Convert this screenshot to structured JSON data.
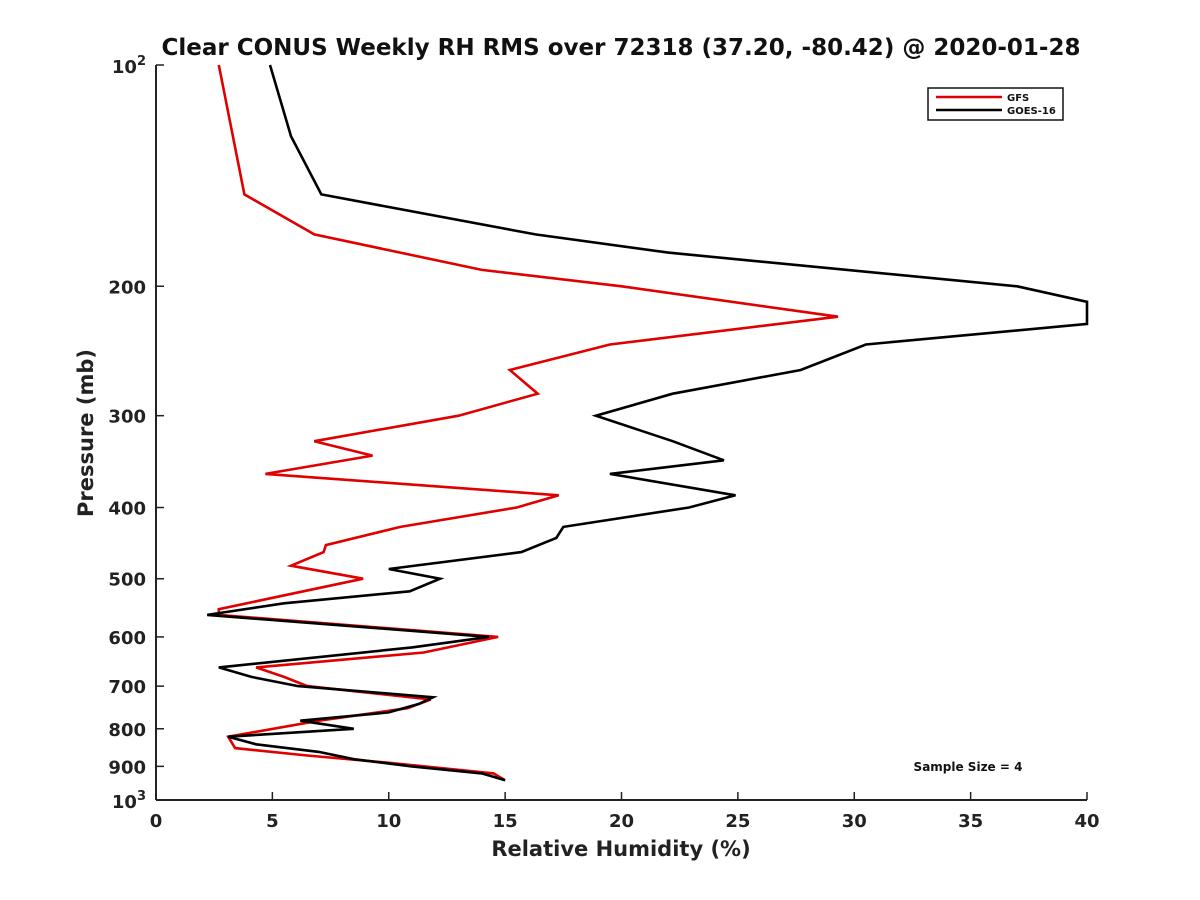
{
  "chart_data": {
    "type": "line",
    "title": "Clear CONUS Weekly RH RMS over 72318 (37.20, -80.42) @ 2020-01-28",
    "xlabel": "Relative Humidity (%)",
    "ylabel": "Pressure (mb)",
    "xlim": [
      0,
      40
    ],
    "ylim": [
      100,
      1000
    ],
    "y_scale": "log",
    "y_reversed": true,
    "x_ticks": [
      0,
      5,
      10,
      15,
      20,
      25,
      30,
      35,
      40
    ],
    "x_tick_labels": [
      "0",
      "5",
      "10",
      "15",
      "20",
      "25",
      "30",
      "35",
      "40"
    ],
    "y_ticks": [
      200,
      300,
      400,
      500,
      600,
      700,
      800,
      900
    ],
    "y_tick_labels": [
      "200",
      "300",
      "400",
      "500",
      "600",
      "700",
      "800",
      "900"
    ],
    "y_decade_ticks": [
      {
        "value": 100,
        "base": "10",
        "exp": "2"
      },
      {
        "value": 1000,
        "base": "10",
        "exp": "3"
      }
    ],
    "grid": false,
    "legend_position": "top-right",
    "annotation": "Sample Size = 4",
    "series": [
      {
        "name": "GFS",
        "color": "#e00000",
        "points": [
          [
            2.7,
            100
          ],
          [
            3.8,
            150
          ],
          [
            6.8,
            170
          ],
          [
            14.0,
            190
          ],
          [
            20.0,
            200
          ],
          [
            29.3,
            220
          ],
          [
            19.5,
            240
          ],
          [
            15.2,
            260
          ],
          [
            16.4,
            280
          ],
          [
            13.0,
            300
          ],
          [
            6.8,
            325
          ],
          [
            9.3,
            340
          ],
          [
            4.7,
            360
          ],
          [
            17.3,
            385
          ],
          [
            15.5,
            400
          ],
          [
            10.5,
            425
          ],
          [
            7.3,
            450
          ],
          [
            7.2,
            460
          ],
          [
            5.8,
            480
          ],
          [
            8.9,
            500
          ],
          [
            2.7,
            550
          ],
          [
            2.7,
            560
          ],
          [
            14.7,
            600
          ],
          [
            11.5,
            630
          ],
          [
            4.3,
            660
          ],
          [
            5.5,
            680
          ],
          [
            6.5,
            700
          ],
          [
            11.8,
            730
          ],
          [
            10.8,
            750
          ],
          [
            7.0,
            780
          ],
          [
            3.1,
            820
          ],
          [
            3.4,
            850
          ],
          [
            6.5,
            870
          ],
          [
            10.0,
            890
          ],
          [
            14.5,
            920
          ],
          [
            15.0,
            940
          ]
        ]
      },
      {
        "name": "GOES-16",
        "color": "#000000",
        "points": [
          [
            4.9,
            100
          ],
          [
            5.8,
            125
          ],
          [
            7.1,
            150
          ],
          [
            16.3,
            170
          ],
          [
            22.0,
            180
          ],
          [
            37.0,
            200
          ],
          [
            40.0,
            210
          ],
          [
            40.0,
            225
          ],
          [
            30.5,
            240
          ],
          [
            27.7,
            260
          ],
          [
            22.2,
            280
          ],
          [
            18.9,
            300
          ],
          [
            22.2,
            325
          ],
          [
            24.4,
            345
          ],
          [
            19.5,
            360
          ],
          [
            24.9,
            385
          ],
          [
            22.9,
            400
          ],
          [
            17.5,
            425
          ],
          [
            17.2,
            440
          ],
          [
            15.7,
            460
          ],
          [
            10.0,
            485
          ],
          [
            12.2,
            500
          ],
          [
            10.9,
            520
          ],
          [
            5.5,
            540
          ],
          [
            2.2,
            560
          ],
          [
            14.3,
            600
          ],
          [
            11.0,
            620
          ],
          [
            2.7,
            660
          ],
          [
            4.1,
            680
          ],
          [
            6.1,
            700
          ],
          [
            11.9,
            725
          ],
          [
            11.3,
            740
          ],
          [
            10.0,
            760
          ],
          [
            6.2,
            780
          ],
          [
            8.5,
            800
          ],
          [
            3.1,
            820
          ],
          [
            4.3,
            840
          ],
          [
            7.0,
            860
          ],
          [
            8.5,
            880
          ],
          [
            11.0,
            900
          ],
          [
            14.0,
            920
          ],
          [
            15.0,
            940
          ]
        ]
      }
    ]
  }
}
